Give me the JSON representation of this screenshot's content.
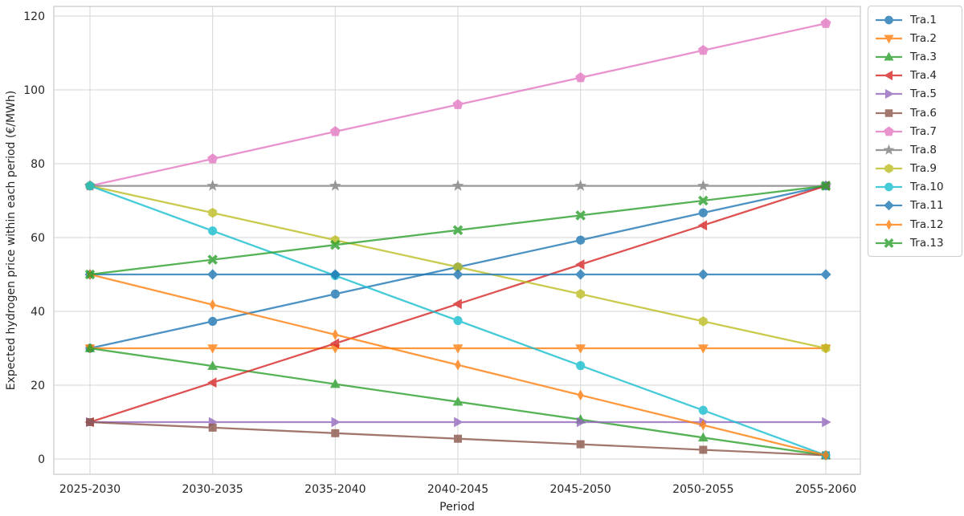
{
  "chart_data": {
    "type": "line",
    "title": "",
    "xlabel": "Period",
    "ylabel": "Expected hydrogen price within each period (€/MWh)",
    "categories": [
      "2025-2030",
      "2030-2035",
      "2035-2040",
      "2040-2045",
      "2045-2050",
      "2050-2055",
      "2055-2060"
    ],
    "yticks": [
      0,
      20,
      40,
      60,
      80,
      100,
      120
    ],
    "ylim": [
      -4,
      122.5
    ],
    "grid": true,
    "legend_position": "outside-upper-right",
    "line_alpha": 0.8,
    "grid_color": "#dcdcdc",
    "border_color": "#cccccc",
    "text_color": "#262626",
    "series": [
      {
        "name": "Tra.1",
        "color": "#1f77b4",
        "marker": "circle",
        "values": [
          30,
          37.3,
          44.7,
          52,
          59.3,
          66.7,
          74
        ]
      },
      {
        "name": "Tra.2",
        "color": "#ff7f0e",
        "marker": "triangle-down",
        "values": [
          30,
          30,
          30,
          30,
          30,
          30,
          30
        ]
      },
      {
        "name": "Tra.3",
        "color": "#2ca02c",
        "marker": "triangle-up",
        "values": [
          30,
          25.2,
          20.3,
          15.5,
          10.7,
          5.8,
          1
        ]
      },
      {
        "name": "Tra.4",
        "color": "#d62728",
        "marker": "triangle-left",
        "values": [
          10,
          20.7,
          31.3,
          42,
          52.7,
          63.3,
          74
        ]
      },
      {
        "name": "Tra.5",
        "color": "#9467bd",
        "marker": "triangle-right",
        "values": [
          10,
          10,
          10,
          10,
          10,
          10,
          10
        ]
      },
      {
        "name": "Tra.6",
        "color": "#8c564b",
        "marker": "square",
        "values": [
          10,
          8.5,
          7,
          5.5,
          4,
          2.5,
          1
        ]
      },
      {
        "name": "Tra.7",
        "color": "#e377c2",
        "marker": "pentagon",
        "values": [
          74,
          81.3,
          88.7,
          96,
          103.3,
          110.7,
          118
        ]
      },
      {
        "name": "Tra.8",
        "color": "#7f7f7f",
        "marker": "star",
        "values": [
          74,
          74,
          74,
          74,
          74,
          74,
          74
        ]
      },
      {
        "name": "Tra.9",
        "color": "#bcbd22",
        "marker": "hexagon",
        "values": [
          74,
          66.7,
          59.3,
          52,
          44.7,
          37.3,
          30
        ]
      },
      {
        "name": "Tra.10",
        "color": "#17becf",
        "marker": "circle",
        "values": [
          74,
          61.8,
          49.7,
          37.5,
          25.3,
          13.2,
          1
        ]
      },
      {
        "name": "Tra.11",
        "color": "#1f77b4",
        "marker": "diamond",
        "values": [
          50,
          50,
          50,
          50,
          50,
          50,
          50
        ]
      },
      {
        "name": "Tra.12",
        "color": "#ff7f0e",
        "marker": "thin-diamond",
        "values": [
          50,
          41.8,
          33.7,
          25.5,
          17.3,
          9.2,
          1
        ]
      },
      {
        "name": "Tra.13",
        "color": "#2ca02c",
        "marker": "x",
        "values": [
          50,
          54,
          58,
          62,
          66,
          70,
          74
        ]
      }
    ]
  }
}
